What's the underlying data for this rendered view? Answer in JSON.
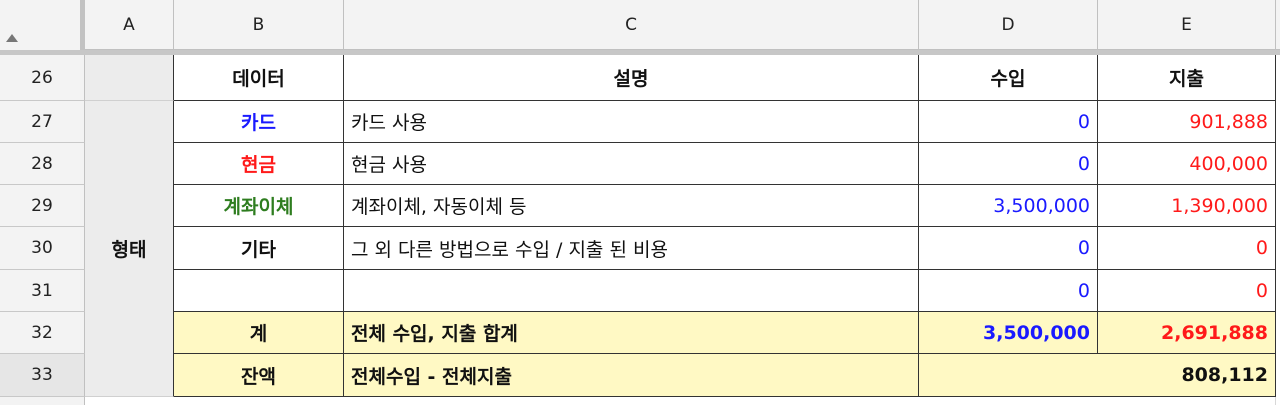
{
  "columns": [
    "A",
    "B",
    "C",
    "D",
    "E"
  ],
  "rows": [
    "26",
    "27",
    "28",
    "29",
    "30",
    "31",
    "32",
    "33"
  ],
  "header": {
    "data": "데이터",
    "description": "설명",
    "income": "수입",
    "expense": "지출"
  },
  "group_label": "형태",
  "items": [
    {
      "name": "카드",
      "desc": "카드 사용",
      "income": "0",
      "expense": "901,888"
    },
    {
      "name": "현금",
      "desc": "현금 사용",
      "income": "0",
      "expense": "400,000"
    },
    {
      "name": "계좌이체",
      "desc": "계좌이체, 자동이체 등",
      "income": "3,500,000",
      "expense": "1,390,000"
    },
    {
      "name": "기타",
      "desc": "그 외 다른 방법으로 수입 / 지출 된 비용",
      "income": "0",
      "expense": "0"
    },
    {
      "name": "",
      "desc": "",
      "income": "0",
      "expense": "0"
    }
  ],
  "total": {
    "label": "계",
    "desc": "전체 수입, 지출 합계",
    "income": "3,500,000",
    "expense": "2,691,888"
  },
  "balance": {
    "label": "잔액",
    "desc": "전체수입 - 전체지출",
    "value": "808,112"
  },
  "colors": {
    "income": "#1a1aff",
    "expense": "#ff1a1a",
    "transfer": "#2e7d1f",
    "highlight": "#fff9c4"
  }
}
